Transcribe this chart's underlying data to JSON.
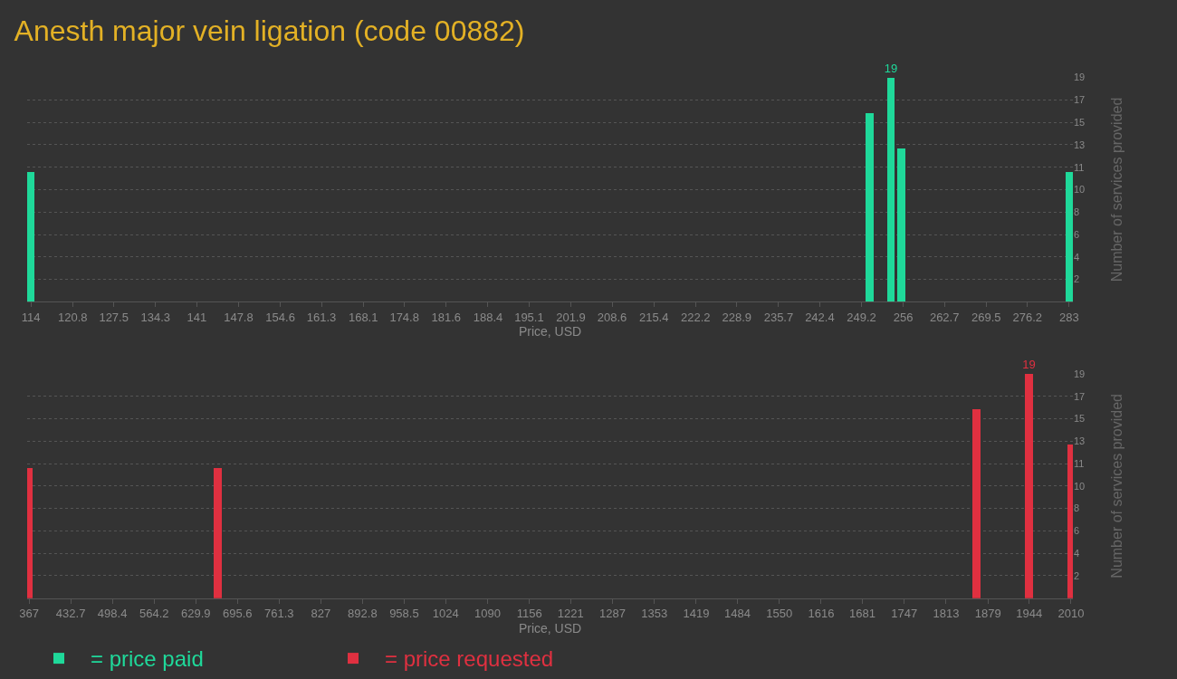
{
  "chart_data": [
    {
      "type": "bar",
      "title": "Anesth major vein ligation (code 00882)",
      "xlabel": "Price, USD",
      "ylabel": "Number of services provided",
      "x": [
        114,
        250.5,
        254,
        255.7,
        283
      ],
      "series": [
        {
          "name": "= price paid",
          "color": "#1fd99a",
          "values": [
            11,
            16,
            19,
            13,
            11
          ],
          "value_labels": [
            null,
            null,
            "19",
            null,
            null
          ]
        }
      ],
      "xlim": [
        113.4,
        283.6
      ],
      "xticks": [
        114,
        120.8,
        127.5,
        134.3,
        141,
        147.8,
        154.6,
        161.3,
        168.1,
        174.8,
        181.6,
        188.4,
        195.1,
        201.9,
        208.6,
        215.4,
        222.2,
        228.9,
        235.7,
        242.4,
        249.2,
        256,
        262.7,
        269.5,
        276.2,
        283
      ],
      "ylim": [
        0,
        19
      ],
      "yticks": [
        {
          "value": 1.9,
          "label": "2"
        },
        {
          "value": 3.8,
          "label": "4"
        },
        {
          "value": 5.7,
          "label": "6"
        },
        {
          "value": 7.6,
          "label": "8"
        },
        {
          "value": 9.5,
          "label": "10"
        },
        {
          "value": 11.4,
          "label": "11"
        },
        {
          "value": 13.3,
          "label": "13"
        },
        {
          "value": 15.2,
          "label": "15"
        },
        {
          "value": 17.1,
          "label": "17"
        },
        {
          "value": 19,
          "label": "19"
        }
      ],
      "grid": "y",
      "legend": "bottom left"
    },
    {
      "type": "bar",
      "xlabel": "Price, USD",
      "ylabel": "Number of services provided",
      "x": [
        367,
        664.7,
        1861,
        1944,
        2010
      ],
      "series": [
        {
          "name": "= price requested",
          "color": "#e03040",
          "values": [
            11,
            11,
            16,
            19,
            13
          ],
          "value_labels": [
            null,
            null,
            null,
            "19",
            null
          ]
        }
      ],
      "xlim": [
        364,
        2013
      ],
      "xticks": [
        367,
        432.7,
        498.4,
        564.2,
        629.9,
        695.6,
        761.3,
        827,
        892.8,
        958.5,
        1024,
        1090,
        1156,
        1221,
        1287,
        1353,
        1419,
        1484,
        1550,
        1616,
        1681,
        1747,
        1813,
        1879,
        1944,
        2010
      ],
      "ylim": [
        0,
        19
      ],
      "yticks": [
        {
          "value": 1.9,
          "label": "2"
        },
        {
          "value": 3.8,
          "label": "4"
        },
        {
          "value": 5.7,
          "label": "6"
        },
        {
          "value": 7.6,
          "label": "8"
        },
        {
          "value": 9.5,
          "label": "10"
        },
        {
          "value": 11.4,
          "label": "11"
        },
        {
          "value": 13.3,
          "label": "13"
        },
        {
          "value": 15.2,
          "label": "15"
        },
        {
          "value": 17.1,
          "label": "17"
        },
        {
          "value": 19,
          "label": "19"
        }
      ],
      "grid": "y",
      "legend": "bottom left"
    }
  ]
}
